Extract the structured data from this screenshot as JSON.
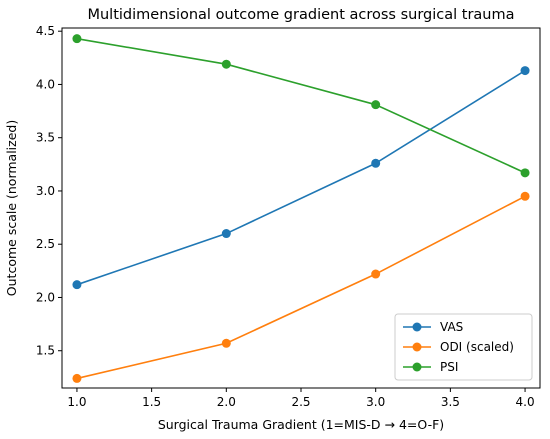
{
  "chart_data": {
    "type": "line",
    "title": "Multidimensional outcome gradient across surgical trauma",
    "xlabel": "Surgical Trauma Gradient (1=MIS-D → 4=O-F)",
    "ylabel": "Outcome scale (normalized)",
    "x": [
      1.0,
      2.0,
      3.0,
      4.0
    ],
    "xlim": [
      0.9,
      4.1
    ],
    "ylim": [
      1.15,
      4.53
    ],
    "xticks": [
      1.0,
      1.5,
      2.0,
      2.5,
      3.0,
      3.5,
      4.0
    ],
    "yticks": [
      1.5,
      2.0,
      2.5,
      3.0,
      3.5,
      4.0,
      4.5
    ],
    "xtick_labels": [
      "1.0",
      "1.5",
      "2.0",
      "2.5",
      "3.0",
      "3.5",
      "4.0"
    ],
    "ytick_labels": [
      "1.5",
      "2.0",
      "2.5",
      "3.0",
      "3.5",
      "4.0",
      "4.5"
    ],
    "grid": false,
    "legend_position": "lower-right",
    "series": [
      {
        "name": "VAS",
        "values": [
          2.12,
          2.6,
          3.26,
          4.13
        ],
        "color": "#1f77b4"
      },
      {
        "name": "ODI (scaled)",
        "values": [
          1.24,
          1.57,
          2.22,
          2.95
        ],
        "color": "#ff7f0e"
      },
      {
        "name": "PSI",
        "values": [
          4.43,
          4.19,
          3.81,
          3.17
        ],
        "color": "#2ca02c"
      }
    ]
  }
}
